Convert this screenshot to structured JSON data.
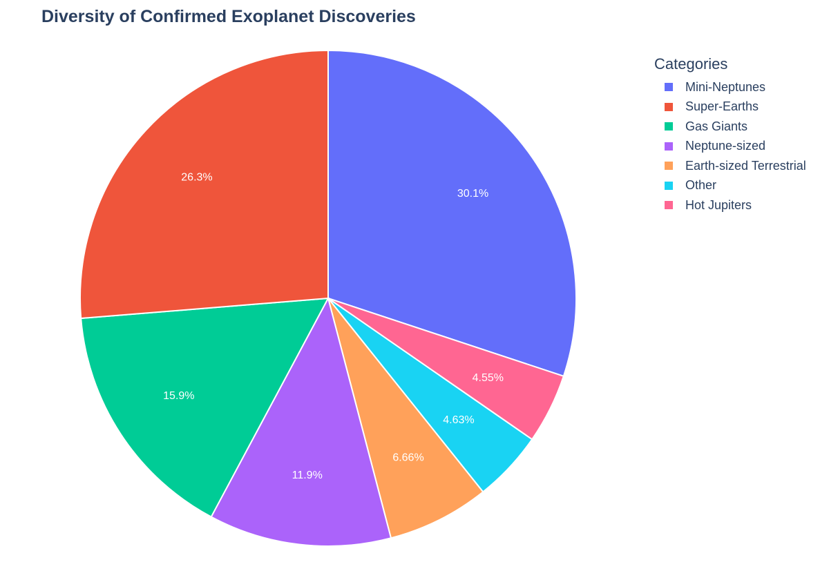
{
  "chart_data": {
    "type": "pie",
    "title": "Diversity of Confirmed Exoplanet Discoveries",
    "legend_title": "Categories",
    "legend_position": "top-right",
    "direction": "clockwise",
    "start": "top",
    "slices": [
      {
        "label": "Mini-Neptunes",
        "percent_label": "30.1%",
        "value": 30.1,
        "color": "#636efa"
      },
      {
        "label": "Super-Earths",
        "percent_label": "26.3%",
        "value": 26.3,
        "color": "#ef553b"
      },
      {
        "label": "Gas Giants",
        "percent_label": "15.9%",
        "value": 15.9,
        "color": "#00cc96"
      },
      {
        "label": "Neptune-sized",
        "percent_label": "11.9%",
        "value": 11.9,
        "color": "#ab63fa"
      },
      {
        "label": "Earth-sized Terrestrial",
        "percent_label": "6.66%",
        "value": 6.66,
        "color": "#ffa15a"
      },
      {
        "label": "Other",
        "percent_label": "4.63%",
        "value": 4.63,
        "color": "#19d3f3"
      },
      {
        "label": "Hot Jupiters",
        "percent_label": "4.55%",
        "value": 4.55,
        "color": "#ff6692"
      }
    ],
    "slice_order": [
      "Mini-Neptunes",
      "Hot Jupiters",
      "Other",
      "Earth-sized Terrestrial",
      "Neptune-sized",
      "Gas Giants",
      "Super-Earths"
    ]
  }
}
